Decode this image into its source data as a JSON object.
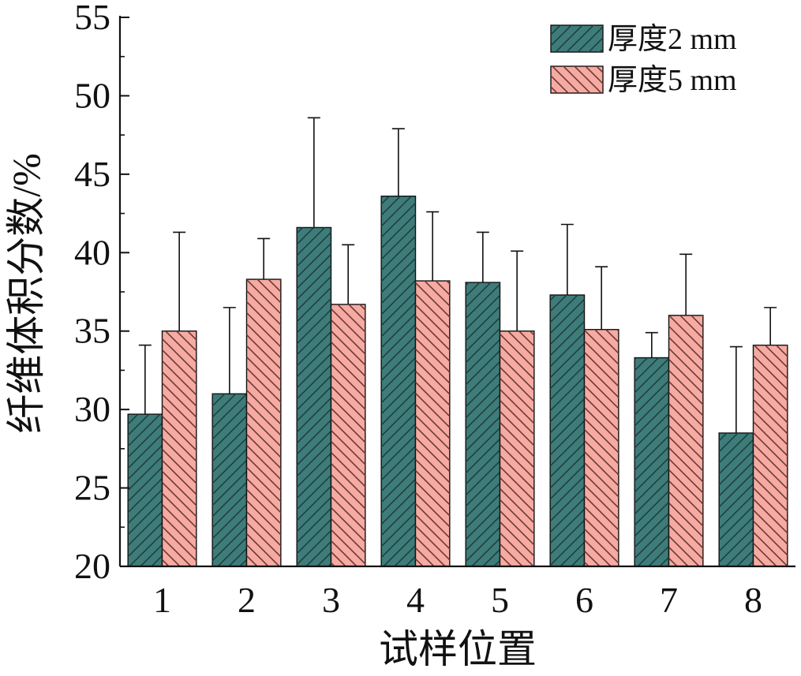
{
  "chart_data": {
    "type": "bar",
    "title": "",
    "xlabel": "试样位置",
    "ylabel": "纤维体积分数/%",
    "categories": [
      "1",
      "2",
      "3",
      "4",
      "5",
      "6",
      "7",
      "8"
    ],
    "ylim": [
      20,
      55
    ],
    "yticks": [
      "20",
      "25",
      "30",
      "35",
      "40",
      "45",
      "50",
      "55"
    ],
    "grid": false,
    "legend_position": "top-right",
    "series": [
      {
        "name": "厚度2 mm",
        "color": "#3e7c7a",
        "pattern": "hatch-forward",
        "values": [
          29.7,
          31.0,
          41.6,
          43.6,
          38.1,
          37.3,
          33.3,
          28.5
        ],
        "error_upper": [
          34.1,
          36.5,
          48.6,
          47.9,
          41.3,
          41.8,
          34.9,
          34.0
        ]
      },
      {
        "name": "厚度5 mm",
        "color": "#f6aaa2",
        "pattern": "hatch-back",
        "values": [
          35.0,
          38.3,
          36.7,
          38.2,
          35.0,
          35.1,
          36.0,
          34.1
        ],
        "error_upper": [
          41.3,
          40.9,
          40.5,
          42.6,
          40.1,
          39.1,
          39.9,
          36.5
        ]
      }
    ]
  }
}
